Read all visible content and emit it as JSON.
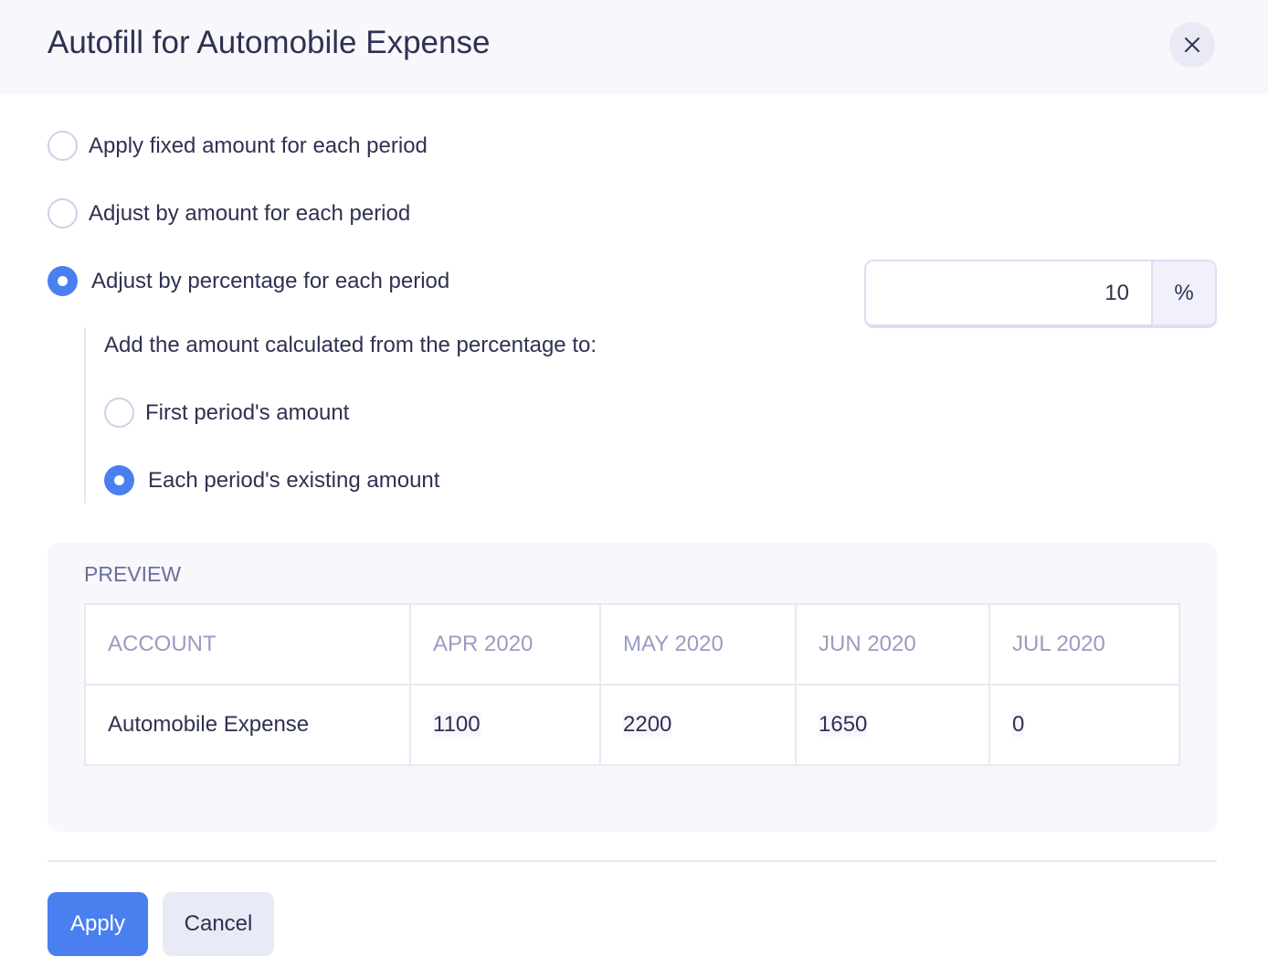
{
  "dialog": {
    "title": "Autofill for Automobile Expense",
    "close_icon": "close-icon"
  },
  "options": [
    {
      "label": "Apply fixed amount for each period",
      "selected": false
    },
    {
      "label": "Adjust by amount for each period",
      "selected": false
    },
    {
      "label": "Adjust by percentage for each period",
      "selected": true
    }
  ],
  "percentage": {
    "value": "10",
    "suffix": "%"
  },
  "sub_options": {
    "label": "Add the amount calculated from the percentage to:",
    "items": [
      {
        "label": "First period's amount",
        "selected": false
      },
      {
        "label": "Each period's existing amount",
        "selected": true
      }
    ]
  },
  "preview": {
    "title": "PREVIEW",
    "columns": [
      "ACCOUNT",
      "APR 2020",
      "MAY 2020",
      "JUN 2020",
      "JUL 2020"
    ],
    "rows": [
      [
        "Automobile Expense",
        "1100",
        "2200",
        "1650",
        "0"
      ]
    ]
  },
  "buttons": {
    "apply": "Apply",
    "cancel": "Cancel"
  },
  "colors": {
    "accent": "#4a7ff0",
    "header_bg": "#f7f7fc",
    "text": "#2f3152"
  }
}
